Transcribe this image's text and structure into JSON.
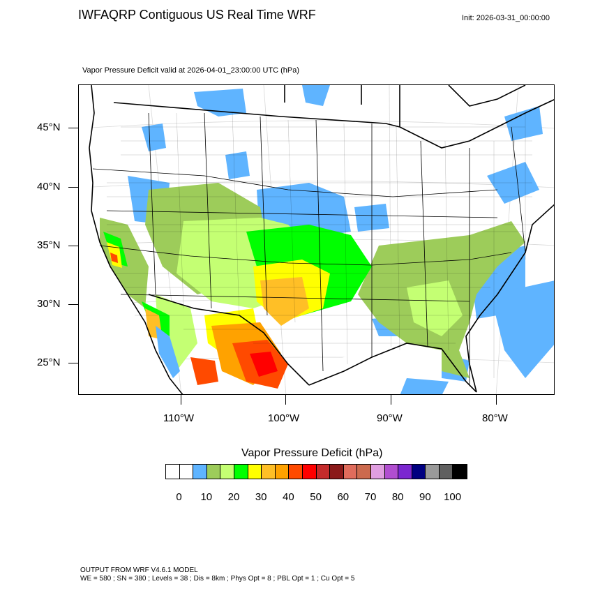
{
  "title": "IWFAQRP Contiguous US Real Time WRF",
  "init": "Init: 2026-03-31_00:00:00",
  "subtitle": "Vapor Pressure Deficit valid at 2026-04-01_23:00:00 UTC   (hPa)",
  "lat_labels": [
    "45°N",
    "40°N",
    "35°N",
    "30°N",
    "25°N"
  ],
  "lon_labels": [
    "110°W",
    "100°W",
    "90°W",
    "80°W"
  ],
  "colorbar": {
    "title": "Vapor Pressure Deficit  (hPa)",
    "colors": [
      "#ffffff",
      "#ffffff",
      "#5fb4ff",
      "#9dcc5a",
      "#c4ff73",
      "#00ff00",
      "#ffff00",
      "#ffbf26",
      "#ffa200",
      "#ff4a00",
      "#ff0000",
      "#c42b2b",
      "#8b1a1a",
      "#e06c5c",
      "#cc6a4e",
      "#e09ee0",
      "#b14ed0",
      "#7b27d0",
      "#000080",
      "#9a9a9a",
      "#606060",
      "#000000"
    ],
    "labels": [
      "0",
      "10",
      "20",
      "30",
      "40",
      "50",
      "60",
      "70",
      "80",
      "90",
      "100"
    ]
  },
  "footer": {
    "line1": "OUTPUT FROM WRF V4.6.1 MODEL",
    "line2": "WE = 580 ; SN = 380 ; Levels = 38 ; Dis = 8km ; Phys Opt = 8 ; PBL Opt = 1 ; Cu Opt = 5"
  }
}
